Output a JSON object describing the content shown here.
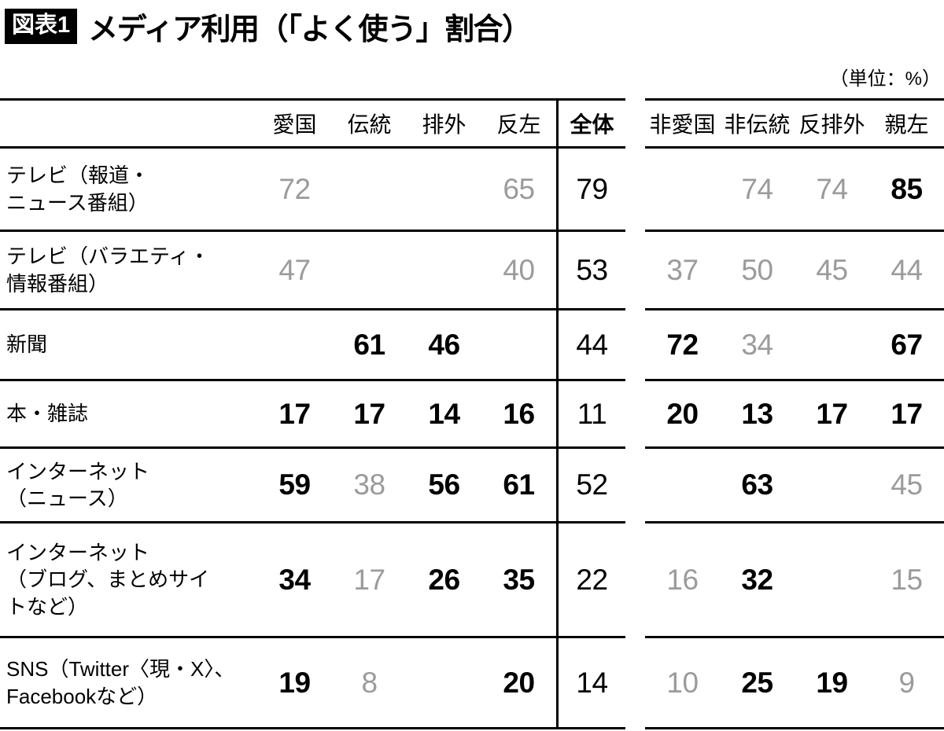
{
  "title": {
    "badge": "図表1",
    "text": "メディア利用（「よく使う」割合）",
    "unit_note": "（単位：%）"
  },
  "colors": {
    "text_black": "#000000",
    "muted_gray": "#9b9b9b",
    "rule_black": "#000000",
    "badge_bg": "#000000",
    "badge_text": "#ffffff"
  },
  "table": {
    "columns_left": [
      "愛国",
      "伝統",
      "排外",
      "反左"
    ],
    "column_total": "全体",
    "columns_right": [
      "非愛国",
      "非伝統",
      "反排外",
      "親左"
    ],
    "rows": [
      {
        "label": "テレビ（報道・\nニュース番組）",
        "left": [
          {
            "v": 72,
            "s": "gray"
          },
          null,
          null,
          {
            "v": 65,
            "s": "gray"
          }
        ],
        "total": 79,
        "right": [
          null,
          {
            "v": 74,
            "s": "gray"
          },
          {
            "v": 74,
            "s": "gray"
          },
          {
            "v": 85,
            "s": "bold"
          }
        ]
      },
      {
        "label": "テレビ（バラエティ・\n情報番組）",
        "left": [
          {
            "v": 47,
            "s": "gray"
          },
          null,
          null,
          {
            "v": 40,
            "s": "gray"
          }
        ],
        "total": 53,
        "right": [
          {
            "v": 37,
            "s": "gray"
          },
          {
            "v": 50,
            "s": "gray"
          },
          {
            "v": 45,
            "s": "gray"
          },
          {
            "v": 44,
            "s": "gray"
          }
        ]
      },
      {
        "label": "新聞",
        "left": [
          null,
          {
            "v": 61,
            "s": "bold"
          },
          {
            "v": 46,
            "s": "bold"
          },
          null
        ],
        "total": 44,
        "right": [
          {
            "v": 72,
            "s": "bold"
          },
          {
            "v": 34,
            "s": "gray"
          },
          null,
          {
            "v": 67,
            "s": "bold"
          }
        ]
      },
      {
        "label": "本・雑誌",
        "left": [
          {
            "v": 17,
            "s": "bold"
          },
          {
            "v": 17,
            "s": "bold"
          },
          {
            "v": 14,
            "s": "bold"
          },
          {
            "v": 16,
            "s": "bold"
          }
        ],
        "total": 11,
        "right": [
          {
            "v": 20,
            "s": "bold"
          },
          {
            "v": 13,
            "s": "bold"
          },
          {
            "v": 17,
            "s": "bold"
          },
          {
            "v": 17,
            "s": "bold"
          }
        ]
      },
      {
        "label": "インターネット\n（ニュース）",
        "left": [
          {
            "v": 59,
            "s": "bold"
          },
          {
            "v": 38,
            "s": "gray"
          },
          {
            "v": 56,
            "s": "bold"
          },
          {
            "v": 61,
            "s": "bold"
          }
        ],
        "total": 52,
        "right": [
          null,
          {
            "v": 63,
            "s": "bold"
          },
          null,
          {
            "v": 45,
            "s": "gray"
          }
        ]
      },
      {
        "label": "インターネット\n（ブログ、まとめサイ\nトなど）",
        "left": [
          {
            "v": 34,
            "s": "bold"
          },
          {
            "v": 17,
            "s": "gray"
          },
          {
            "v": 26,
            "s": "bold"
          },
          {
            "v": 35,
            "s": "bold"
          }
        ],
        "total": 22,
        "right": [
          {
            "v": 16,
            "s": "gray"
          },
          {
            "v": 32,
            "s": "bold"
          },
          null,
          {
            "v": 15,
            "s": "gray"
          }
        ]
      },
      {
        "label": "SNS（Twitter〈現・X〉、\nFacebookなど）",
        "left": [
          {
            "v": 19,
            "s": "bold"
          },
          {
            "v": 8,
            "s": "gray"
          },
          null,
          {
            "v": 20,
            "s": "bold"
          }
        ],
        "total": 14,
        "right": [
          {
            "v": 10,
            "s": "gray"
          },
          {
            "v": 25,
            "s": "bold"
          },
          {
            "v": 19,
            "s": "bold"
          },
          {
            "v": 9,
            "s": "gray"
          }
        ]
      }
    ]
  },
  "chart_data": {
    "type": "table",
    "title": "メディア利用（「よく使う」割合）",
    "unit": "%",
    "columns": [
      "愛国",
      "伝統",
      "排外",
      "反左",
      "全体",
      "非愛国",
      "非伝統",
      "反排外",
      "親左"
    ],
    "row_labels": [
      "テレビ（報道・ニュース番組）",
      "テレビ（バラエティ・情報番組）",
      "新聞",
      "本・雑誌",
      "インターネット（ニュース）",
      "インターネット（ブログ、まとめサイトなど）",
      "SNS（Twitter〈現・X〉、Facebookなど）"
    ],
    "values": [
      [
        72,
        null,
        null,
        65,
        79,
        null,
        74,
        74,
        85
      ],
      [
        47,
        null,
        null,
        40,
        53,
        37,
        50,
        45,
        44
      ],
      [
        null,
        61,
        46,
        null,
        44,
        72,
        34,
        null,
        67
      ],
      [
        17,
        17,
        14,
        16,
        11,
        20,
        13,
        17,
        17
      ],
      [
        59,
        38,
        56,
        61,
        52,
        null,
        63,
        null,
        45
      ],
      [
        34,
        17,
        26,
        35,
        22,
        16,
        32,
        null,
        15
      ],
      [
        19,
        8,
        null,
        20,
        14,
        10,
        25,
        19,
        9
      ]
    ]
  }
}
